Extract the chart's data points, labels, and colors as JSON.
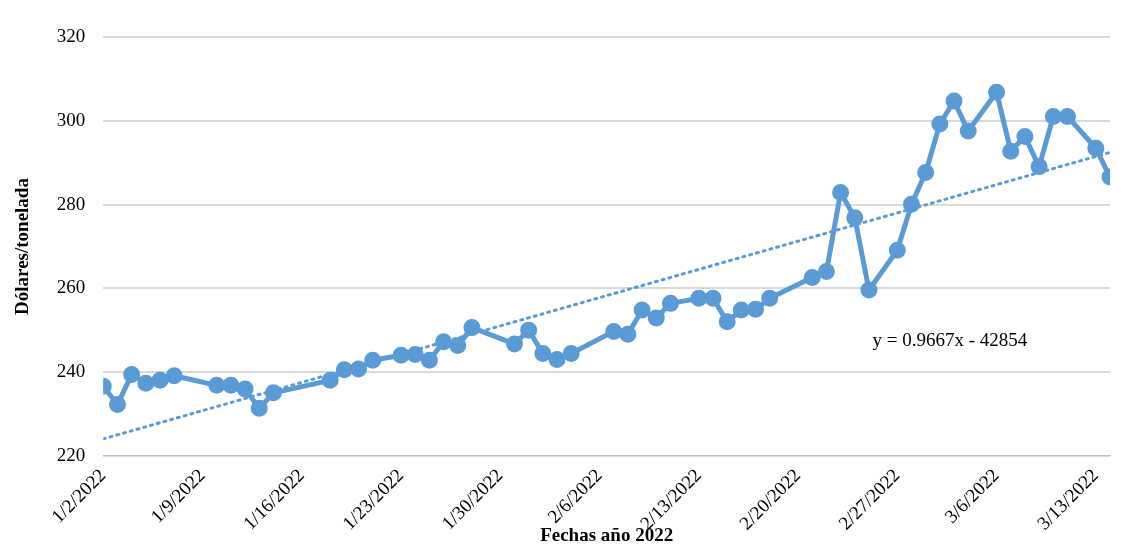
{
  "chart_data": {
    "type": "line",
    "xlabel": "Fechas año 2022",
    "ylabel": "Dólares/tonelada",
    "annotations": [
      "y = 0.9667x - 42854"
    ],
    "x": [
      "2022-01-02",
      "2022-01-03",
      "2022-01-04",
      "2022-01-05",
      "2022-01-06",
      "2022-01-07",
      "2022-01-10",
      "2022-01-11",
      "2022-01-12",
      "2022-01-13",
      "2022-01-14",
      "2022-01-18",
      "2022-01-19",
      "2022-01-20",
      "2022-01-21",
      "2022-01-23",
      "2022-01-24",
      "2022-01-25",
      "2022-01-26",
      "2022-01-27",
      "2022-01-28",
      "2022-01-31",
      "2022-02-01",
      "2022-02-02",
      "2022-02-03",
      "2022-02-04",
      "2022-02-07",
      "2022-02-08",
      "2022-02-09",
      "2022-02-10",
      "2022-02-11",
      "2022-02-13",
      "2022-02-14",
      "2022-02-15",
      "2022-02-16",
      "2022-02-17",
      "2022-02-18",
      "2022-02-21",
      "2022-02-22",
      "2022-02-23",
      "2022-02-24",
      "2022-02-25",
      "2022-02-27",
      "2022-02-28",
      "2022-03-01",
      "2022-03-02",
      "2022-03-03",
      "2022-03-04",
      "2022-03-06",
      "2022-03-07",
      "2022-03-08",
      "2022-03-09",
      "2022-03-10",
      "2022-03-11",
      "2022-03-13",
      "2022-03-14"
    ],
    "series": [
      {
        "color": "#5b9bd5",
        "values": [
          236.6,
          232.2,
          239.4,
          237.3,
          238.0,
          239.1,
          236.8,
          236.8,
          235.9,
          231.3,
          235.0,
          238.0,
          240.5,
          240.7,
          242.8,
          244.0,
          244.2,
          242.8,
          247.2,
          246.3,
          250.6,
          246.7,
          250.0,
          244.4,
          243.0,
          244.4,
          249.7,
          249.0,
          254.8,
          252.9,
          256.4,
          257.6,
          257.6,
          252.0,
          254.8,
          255.0,
          257.6,
          262.6,
          264.0,
          282.9,
          276.9,
          259.6,
          269.1,
          280.1,
          287.7,
          299.3,
          304.8,
          297.6,
          306.9,
          292.8,
          296.3,
          289.1,
          301.1,
          301.1,
          293.5,
          286.6
        ]
      },
      {
        "type": "line",
        "color": "#5b9bd5",
        "x": [
          "2022-01-02",
          "2022-03-14"
        ],
        "values": [
          224.0,
          292.5
        ],
        "line_style": "dotted",
        "marker": "none"
      }
    ],
    "xlim": [
      "2022-01-02",
      "2022-03-14"
    ],
    "xticks": [
      {
        "value": "2022-01-02",
        "label": "1/2/2022"
      },
      {
        "value": "2022-01-09",
        "label": "1/9/2022"
      },
      {
        "value": "2022-01-16",
        "label": "1/16/2022"
      },
      {
        "value": "2022-01-23",
        "label": "1/23/2022"
      },
      {
        "value": "2022-01-30",
        "label": "1/30/2022"
      },
      {
        "value": "2022-02-06",
        "label": "2/6/2022"
      },
      {
        "value": "2022-02-13",
        "label": "2/13/2022"
      },
      {
        "value": "2022-02-20",
        "label": "2/20/2022"
      },
      {
        "value": "2022-02-27",
        "label": "2/27/2022"
      },
      {
        "value": "2022-03-06",
        "label": "3/6/2022"
      },
      {
        "value": "2022-03-13",
        "label": "3/13/2022"
      }
    ],
    "ylim": [
      220,
      320
    ],
    "yticks": [
      220,
      240,
      260,
      280,
      300,
      320
    ],
    "grid": "y",
    "legend": false,
    "marker": "circle",
    "line_style": "solid"
  }
}
